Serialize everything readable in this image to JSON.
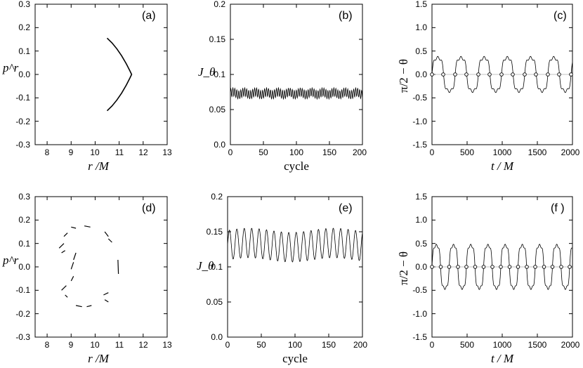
{
  "chart_data": [
    {
      "id": "a",
      "type": "scatter",
      "panel_label": "(a)",
      "xlabel": "r /M",
      "ylabel": "p^r",
      "xlim": [
        7.5,
        13
      ],
      "ylim": [
        -0.3,
        0.3
      ],
      "xticks": [
        "8",
        "9",
        "10",
        "11",
        "12",
        "13"
      ],
      "yticks": [
        "-0.3",
        "-0.2",
        "-0.1",
        "0.0",
        "0.1",
        "0.2",
        "0.3"
      ],
      "grid": false,
      "points": [
        [
          10.5,
          0.155
        ],
        [
          10.7,
          0.135
        ],
        [
          10.9,
          0.11
        ],
        [
          11.1,
          0.08
        ],
        [
          11.3,
          0.045
        ],
        [
          11.45,
          0.015
        ],
        [
          11.52,
          0.0
        ],
        [
          11.45,
          -0.015
        ],
        [
          11.3,
          -0.045
        ],
        [
          11.1,
          -0.08
        ],
        [
          10.9,
          -0.11
        ],
        [
          10.7,
          -0.135
        ],
        [
          10.5,
          -0.155
        ]
      ]
    },
    {
      "id": "b",
      "type": "line",
      "panel_label": "(b)",
      "xlabel": "cycle",
      "ylabel": "J_θ",
      "xlim": [
        0,
        200
      ],
      "ylim": [
        0.0,
        0.2
      ],
      "xticks": [
        "0",
        "50",
        "100",
        "150",
        "200"
      ],
      "yticks": [
        "0.0",
        "0.05",
        "0.1",
        "0.15",
        "0.2"
      ],
      "grid": false,
      "series": [
        {
          "mean": 0.073,
          "amplitude": 0.006,
          "period_cycles": 3
        }
      ]
    },
    {
      "id": "c",
      "type": "line",
      "panel_label": "(c)",
      "xlabel": "t / M",
      "ylabel": "π/2 − θ",
      "xlim": [
        0,
        2000
      ],
      "ylim": [
        -1.5,
        1.5
      ],
      "xticks": [
        "0",
        "500",
        "1000",
        "1500",
        "2000"
      ],
      "yticks": [
        "-1.5",
        "-1.0",
        "-0.5",
        "0.0",
        "0.5",
        "1.0",
        "1.5"
      ],
      "grid": false,
      "series": [
        {
          "amplitude": 0.48,
          "period": 330
        }
      ],
      "markers_t": [
        0,
        160,
        330,
        490,
        660,
        820,
        990,
        1150,
        1320,
        1480,
        1650,
        1810,
        1980
      ]
    },
    {
      "id": "d",
      "type": "scatter",
      "panel_label": "(d)",
      "xlabel": "r /M",
      "ylabel": "p^r",
      "xlim": [
        7.5,
        13
      ],
      "ylim": [
        -0.3,
        0.3
      ],
      "xticks": [
        "8",
        "9",
        "10",
        "11",
        "12",
        "13"
      ],
      "yticks": [
        "-0.3",
        "-0.2",
        "-0.1",
        "0.0",
        "0.1",
        "0.2",
        "0.3"
      ],
      "grid": false,
      "segments": [
        [
          [
            9.0,
            0.17
          ],
          [
            9.2,
            0.165
          ]
        ],
        [
          [
            9.55,
            0.175
          ],
          [
            9.8,
            0.17
          ]
        ],
        [
          [
            8.7,
            0.13
          ],
          [
            8.85,
            0.145
          ]
        ],
        [
          [
            10.4,
            0.15
          ],
          [
            10.55,
            0.13
          ]
        ],
        [
          [
            10.55,
            0.12
          ],
          [
            10.7,
            0.105
          ]
        ],
        [
          [
            8.5,
            0.08
          ],
          [
            8.7,
            0.1
          ]
        ],
        [
          [
            8.6,
            0.06
          ],
          [
            8.75,
            0.07
          ]
        ],
        [
          [
            9.1,
            0.03
          ],
          [
            9.2,
            0.06
          ]
        ],
        [
          [
            9.0,
            -0.01
          ],
          [
            9.1,
            0.02
          ]
        ],
        [
          [
            10.95,
            0.03
          ],
          [
            10.97,
            -0.03
          ]
        ],
        [
          [
            9.0,
            -0.06
          ],
          [
            9.1,
            -0.04
          ]
        ],
        [
          [
            8.6,
            -0.1
          ],
          [
            8.8,
            -0.08
          ]
        ],
        [
          [
            8.75,
            -0.12
          ],
          [
            8.85,
            -0.13
          ]
        ],
        [
          [
            10.35,
            -0.12
          ],
          [
            10.55,
            -0.11
          ]
        ],
        [
          [
            10.4,
            -0.14
          ],
          [
            10.55,
            -0.15
          ]
        ],
        [
          [
            9.2,
            -0.165
          ],
          [
            9.45,
            -0.17
          ]
        ],
        [
          [
            9.65,
            -0.17
          ],
          [
            9.85,
            -0.165
          ]
        ]
      ]
    },
    {
      "id": "e",
      "type": "line",
      "panel_label": "(e)",
      "xlabel": "cycle",
      "ylabel": "J_θ",
      "xlim": [
        0,
        200
      ],
      "ylim": [
        0.0,
        0.2
      ],
      "xticks": [
        "0",
        "50",
        "100",
        "150",
        "200"
      ],
      "yticks": [
        "0.0",
        "0.05",
        "0.1",
        "0.15",
        "0.2"
      ],
      "grid": false,
      "series": [
        {
          "mean": 0.131,
          "amplitude": 0.021,
          "period_cycles": 11
        }
      ]
    },
    {
      "id": "f",
      "type": "line",
      "panel_label": "(f )",
      "xlabel": "t / M",
      "ylabel": "π/2 − θ",
      "xlim": [
        0,
        2000
      ],
      "ylim": [
        -1.5,
        1.5
      ],
      "xticks": [
        "0",
        "500",
        "1000",
        "1500",
        "2000"
      ],
      "yticks": [
        "-1.5",
        "-1.0",
        "-0.5",
        "0.0",
        "0.5",
        "1.0",
        "1.5"
      ],
      "grid": false,
      "series": [
        {
          "amplitude": 0.62,
          "period": 245
        }
      ],
      "markers_t": [
        0,
        125,
        245,
        370,
        490,
        615,
        735,
        860,
        980,
        1105,
        1225,
        1350,
        1470,
        1595,
        1715,
        1840,
        1960
      ]
    }
  ]
}
